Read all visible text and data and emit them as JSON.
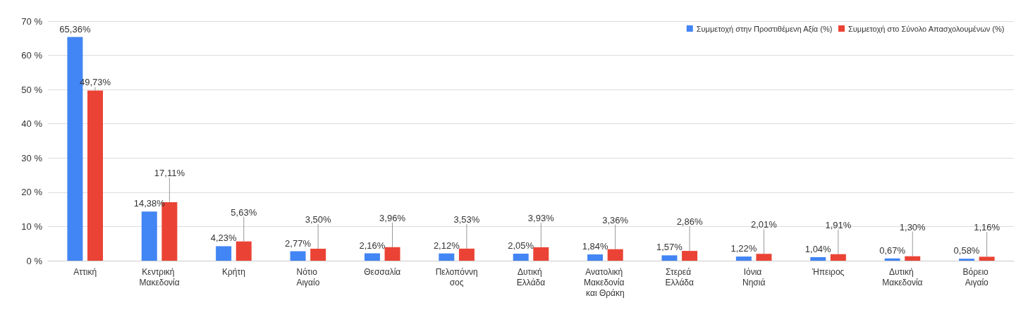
{
  "chart_data": {
    "type": "bar",
    "categories": [
      "Αττική",
      "Κεντρική Μακεδονία",
      "Κρήτη",
      "Νότιο Αιγαίο",
      "Θεσσαλία",
      "Πελοπόννησος",
      "Δυτική Ελλάδα",
      "Ανατολική Μακεδονία και Θράκη",
      "Στερεά Ελλάδα",
      "Ιόνια Νησιά",
      "Ήπειρος",
      "Δυτική Μακεδονία",
      "Βόρειο Αιγαίο"
    ],
    "series": [
      {
        "name": "Συμμετοχή στην Προστιθέμενη Αξία (%)",
        "color": "#4285f4",
        "values": [
          65.36,
          14.38,
          4.23,
          2.77,
          2.16,
          2.12,
          2.05,
          1.84,
          1.57,
          1.22,
          1.04,
          0.67,
          0.58
        ],
        "value_labels": [
          "65,36%",
          "14,38%",
          "4,23%",
          "2,77%",
          "2,16%",
          "2,12%",
          "2,05%",
          "1,84%",
          "1,57%",
          "1,22%",
          "1,04%",
          "0,67%",
          "0,58%"
        ]
      },
      {
        "name": "Συμμετοχή στο Σύνολο Απασχολουμένων (%)",
        "color": "#ea4335",
        "values": [
          49.73,
          17.11,
          5.63,
          3.5,
          3.96,
          3.53,
          3.93,
          3.36,
          2.86,
          2.01,
          1.91,
          1.3,
          1.16
        ],
        "value_labels": [
          "49,73%",
          "17,11%",
          "5,63%",
          "3,50%",
          "3,96%",
          "3,53%",
          "3,93%",
          "3,36%",
          "2,86%",
          "2,01%",
          "1,91%",
          "1,30%",
          "1,16%"
        ]
      }
    ],
    "ylim": [
      0,
      70
    ],
    "yticks": [
      {
        "value": 0,
        "label": "0 %"
      },
      {
        "value": 10,
        "label": "10 %"
      },
      {
        "value": 20,
        "label": "20 %"
      },
      {
        "value": 30,
        "label": "30 %"
      },
      {
        "value": 40,
        "label": "40 %"
      },
      {
        "value": 50,
        "label": "50 %"
      },
      {
        "value": 60,
        "label": "60 %"
      },
      {
        "value": 70,
        "label": "70 %"
      }
    ],
    "grid": "y",
    "legend": "top right"
  }
}
